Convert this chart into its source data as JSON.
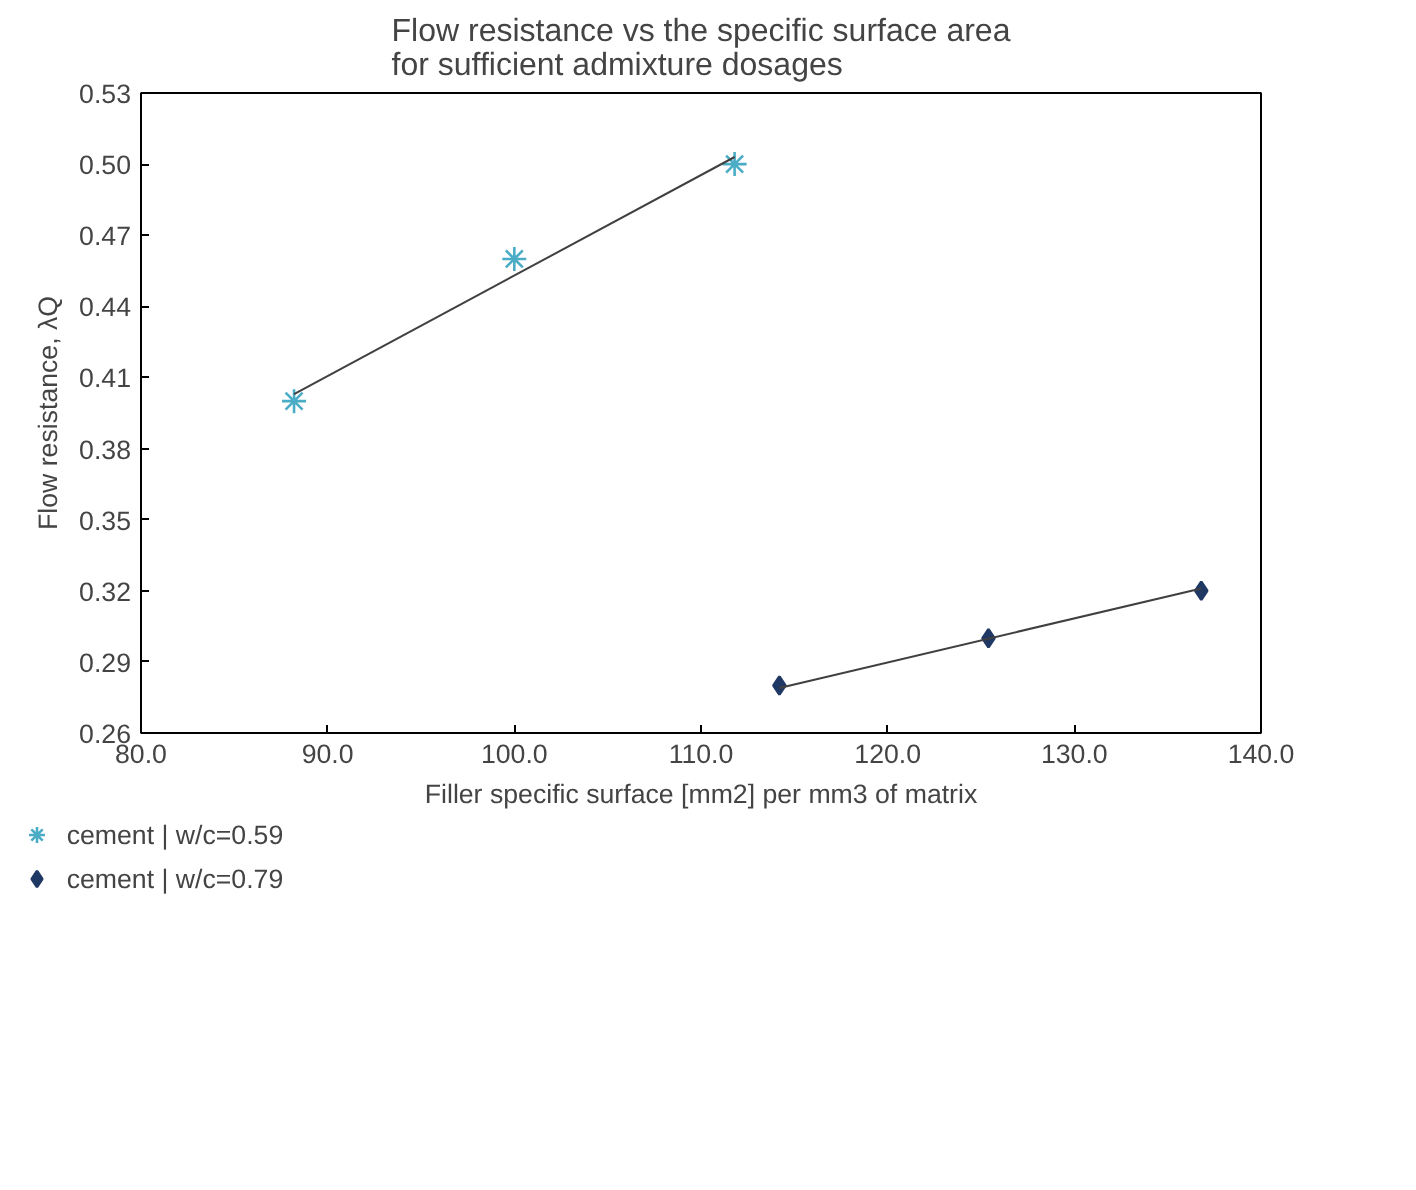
{
  "chart_data": {
    "type": "scatter",
    "title": "Flow resistance vs the specific surface area\nfor sufficient admixture dosages",
    "xlabel": "Filler specific surface [mm2] per mm3 of matrix",
    "ylabel": "Flow resistance, λQ",
    "series": [
      {
        "name": "cement | w/c=0.59",
        "color": "#4bacc6",
        "marker": "cross",
        "x": [
          88.2,
          100.0,
          111.8
        ],
        "values": [
          0.4,
          0.46,
          0.5
        ]
      },
      {
        "name": "cement | w/c=0.79",
        "color": "#1f3864",
        "marker": "diamond",
        "x": [
          114.2,
          125.4,
          136.8
        ],
        "values": [
          0.28,
          0.3,
          0.32
        ]
      },
      {
        "type": "line",
        "color": "#404040",
        "x": [
          88.2,
          111.8
        ],
        "values": [
          0.403,
          0.503
        ]
      },
      {
        "type": "line",
        "color": "#404040",
        "x": [
          114.2,
          136.8
        ],
        "values": [
          0.279,
          0.321
        ]
      }
    ],
    "xlim": [
      80,
      140
    ],
    "xticks": [
      {
        "value": 80,
        "label": "80.0"
      },
      {
        "value": 90,
        "label": "90.0"
      },
      {
        "value": 100,
        "label": "100.0"
      },
      {
        "value": 110,
        "label": "110.0"
      },
      {
        "value": 120,
        "label": "120.0"
      },
      {
        "value": 130,
        "label": "130.0"
      },
      {
        "value": 140,
        "label": "140.0"
      }
    ],
    "ylim": [
      0.26,
      0.53
    ],
    "yticks": [
      {
        "value": 0.26,
        "label": "0.26"
      },
      {
        "value": 0.29,
        "label": "0.29"
      },
      {
        "value": 0.32,
        "label": "0.32"
      },
      {
        "value": 0.35,
        "label": "0.35"
      },
      {
        "value": 0.38,
        "label": "0.38"
      },
      {
        "value": 0.41,
        "label": "0.41"
      },
      {
        "value": 0.44,
        "label": "0.44"
      },
      {
        "value": 0.47,
        "label": "0.47"
      },
      {
        "value": 0.5,
        "label": "0.50"
      },
      {
        "value": 0.53,
        "label": "0.53"
      }
    ],
    "grid": false,
    "legend": "bottom"
  }
}
